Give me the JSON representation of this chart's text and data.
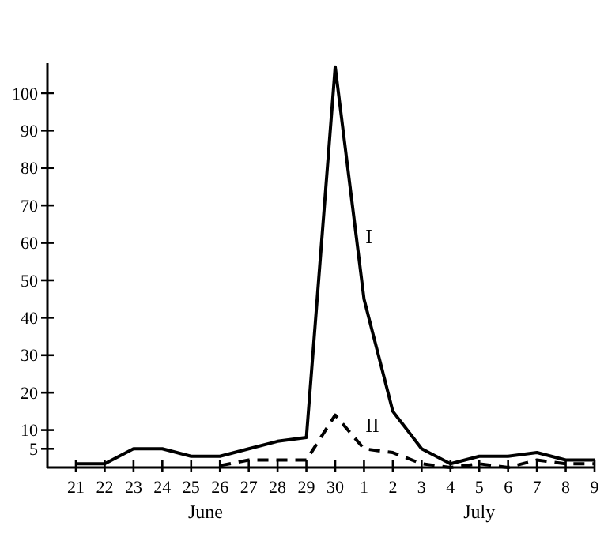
{
  "chart_data": {
    "type": "line",
    "categories": [
      "21",
      "22",
      "23",
      "24",
      "25",
      "26",
      "27",
      "28",
      "29",
      "30",
      "1",
      "2",
      "3",
      "4",
      "5",
      "6",
      "7",
      "8",
      "9"
    ],
    "series": [
      {
        "name": "I",
        "color": "#000000",
        "line_style": "solid",
        "values": [
          1,
          1,
          5,
          5,
          3,
          3,
          5,
          7,
          8,
          107,
          45,
          15,
          5,
          1,
          3,
          3,
          4,
          2,
          2
        ]
      },
      {
        "name": "II",
        "color": "#000000",
        "line_style": "dashed",
        "values": [
          null,
          null,
          null,
          null,
          null,
          0.5,
          2,
          2,
          2,
          14,
          5,
          4,
          1,
          0,
          1,
          0,
          2,
          1,
          1
        ]
      }
    ],
    "ylim": [
      0,
      108
    ],
    "yticks": [
      5,
      10,
      20,
      30,
      40,
      50,
      60,
      70,
      80,
      90,
      100
    ],
    "annotations": [
      "June",
      "July"
    ],
    "grid": false,
    "marker": "none"
  }
}
